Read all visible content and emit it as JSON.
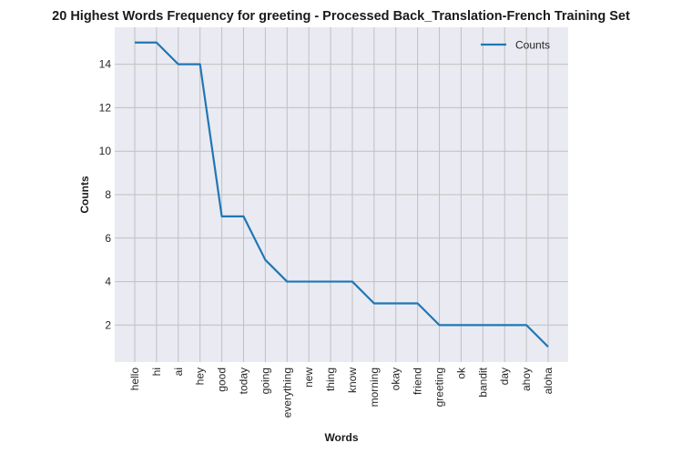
{
  "chart_data": {
    "type": "line",
    "title": "20 Highest Words Frequency for greeting - Processed Back_Translation-French Training Set",
    "xlabel": "Words",
    "ylabel": "Counts",
    "categories": [
      "hello",
      "hi",
      "ai",
      "hey",
      "good",
      "today",
      "going",
      "everything",
      "new",
      "thing",
      "know",
      "morning",
      "okay",
      "friend",
      "greeting",
      "ok",
      "bandit",
      "day",
      "ahoy",
      "aloha"
    ],
    "series": [
      {
        "name": "Counts",
        "values": [
          15,
          15,
          14,
          14,
          7,
          7,
          5,
          4,
          4,
          4,
          4,
          3,
          3,
          3,
          2,
          2,
          2,
          2,
          2,
          1
        ]
      }
    ],
    "ylim": [
      0.3,
      15.7
    ],
    "yticks": [
      2,
      4,
      6,
      8,
      10,
      12,
      14
    ],
    "grid": true,
    "legend_position": "top-right",
    "colors": {
      "line": "#1f77b4",
      "plot_background": "#eaeaf2",
      "grid": "#c0c0c0"
    }
  }
}
